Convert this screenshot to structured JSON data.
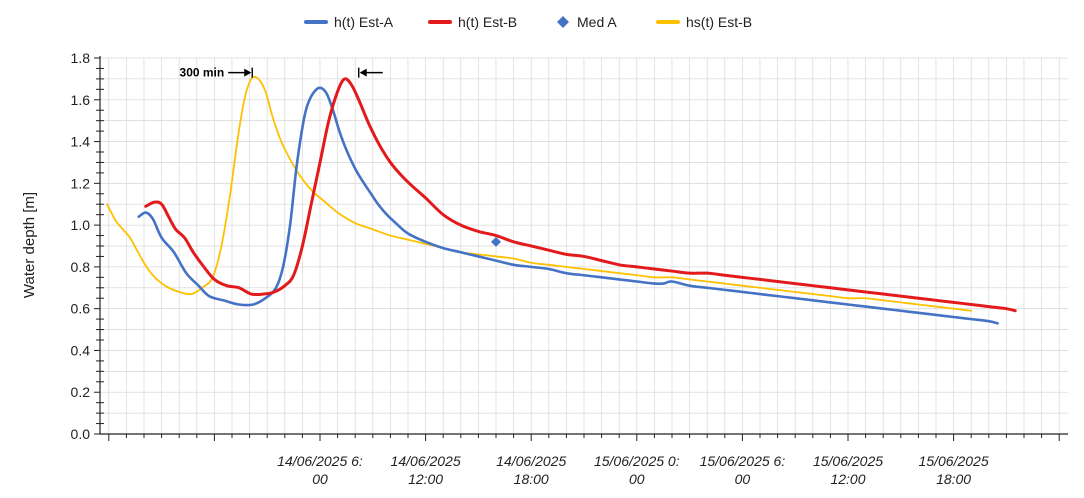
{
  "chart_data": {
    "type": "line",
    "title": "",
    "xlabel": "",
    "ylabel": "Water depth [m]",
    "ylim": [
      0,
      1.8
    ],
    "yticks": [
      "0.0",
      "0.2",
      "0.4",
      "0.6",
      "0.8",
      "1.0",
      "1.2",
      "1.4",
      "1.6",
      "1.8"
    ],
    "grid": true,
    "legend_placement": "top-center",
    "xaxis": {
      "unit": "hours",
      "range": [
        -6.5,
        48.5
      ],
      "tick_labels": [
        {
          "hours": 6,
          "line1": "14/06/2025 6:",
          "line2": "00"
        },
        {
          "hours": 12,
          "line1": "14/06/2025",
          "line2": "12:00"
        },
        {
          "hours": 18,
          "line1": "14/06/2025",
          "line2": "18:00"
        },
        {
          "hours": 24,
          "line1": "15/06/2025 0:",
          "line2": "00"
        },
        {
          "hours": 30,
          "line1": "15/06/2025 6:",
          "line2": "00"
        },
        {
          "hours": 36,
          "line1": "15/06/2025",
          "line2": "12:00"
        },
        {
          "hours": 42,
          "line1": "15/06/2025",
          "line2": "18:00"
        }
      ]
    },
    "series": [
      {
        "name": "h(t) Est-A",
        "color": "#4472C4",
        "kind": "line",
        "x": [
          -4.3,
          -3.9,
          -3.5,
          -3.0,
          -2.3,
          -1.6,
          -0.9,
          -0.3,
          0.5,
          1.4,
          2.2,
          2.9,
          3.5,
          3.9,
          4.3,
          4.7,
          5.2,
          5.8,
          6.3,
          6.7,
          7.1,
          7.5,
          8.0,
          8.5,
          8.9,
          9.3,
          9.8,
          10.3,
          11.0,
          12.0,
          13.0,
          14.0,
          15.0,
          16.0,
          17.0,
          18.0,
          19.0,
          20.0,
          21.0,
          22.0,
          23.0,
          24.0,
          25.0,
          25.5,
          26.0,
          27.0,
          28.0,
          29.0,
          30.0,
          31.0,
          32.0,
          33.0,
          34.0,
          35.0,
          36.0,
          37.0,
          38.0,
          39.0,
          40.0,
          41.0,
          42.0,
          43.0,
          44.0,
          44.5
        ],
        "y": [
          1.04,
          1.06,
          1.03,
          0.94,
          0.87,
          0.77,
          0.71,
          0.66,
          0.64,
          0.62,
          0.62,
          0.65,
          0.7,
          0.8,
          1.0,
          1.3,
          1.55,
          1.65,
          1.64,
          1.56,
          1.45,
          1.36,
          1.27,
          1.2,
          1.15,
          1.1,
          1.05,
          1.01,
          0.96,
          0.92,
          0.89,
          0.87,
          0.85,
          0.83,
          0.81,
          0.8,
          0.79,
          0.77,
          0.76,
          0.75,
          0.74,
          0.73,
          0.72,
          0.72,
          0.73,
          0.71,
          0.7,
          0.69,
          0.68,
          0.67,
          0.66,
          0.65,
          0.64,
          0.63,
          0.62,
          0.61,
          0.6,
          0.59,
          0.58,
          0.57,
          0.56,
          0.55,
          0.54,
          0.53
        ]
      },
      {
        "name": "h(t) Est-B",
        "color": "#E31A1C",
        "kind": "line",
        "x": [
          -3.9,
          -3.4,
          -3.0,
          -2.6,
          -2.2,
          -1.7,
          -1.2,
          -0.6,
          0.0,
          0.7,
          1.4,
          2.1,
          2.8,
          3.4,
          4.0,
          4.5,
          5.0,
          5.5,
          6.0,
          6.5,
          7.0,
          7.4,
          7.8,
          8.2,
          8.8,
          9.4,
          10.0,
          10.6,
          11.2,
          12.0,
          13.0,
          14.0,
          15.0,
          16.0,
          17.0,
          18.0,
          19.0,
          20.0,
          21.0,
          22.0,
          23.0,
          24.0,
          25.0,
          26.0,
          27.0,
          28.0,
          29.0,
          30.0,
          31.0,
          32.0,
          33.0,
          34.0,
          35.0,
          36.0,
          37.0,
          38.0,
          39.0,
          40.0,
          41.0,
          42.0,
          43.0,
          44.0,
          45.0,
          45.5
        ],
        "y": [
          1.09,
          1.11,
          1.1,
          1.04,
          0.98,
          0.94,
          0.87,
          0.8,
          0.74,
          0.71,
          0.7,
          0.67,
          0.67,
          0.68,
          0.71,
          0.76,
          0.9,
          1.1,
          1.3,
          1.5,
          1.64,
          1.7,
          1.67,
          1.6,
          1.48,
          1.38,
          1.3,
          1.24,
          1.19,
          1.13,
          1.05,
          1.0,
          0.97,
          0.95,
          0.92,
          0.9,
          0.88,
          0.86,
          0.85,
          0.83,
          0.81,
          0.8,
          0.79,
          0.78,
          0.77,
          0.77,
          0.76,
          0.75,
          0.74,
          0.73,
          0.72,
          0.71,
          0.7,
          0.69,
          0.68,
          0.67,
          0.66,
          0.65,
          0.64,
          0.63,
          0.62,
          0.61,
          0.6,
          0.59
        ]
      },
      {
        "name": "Med A",
        "color": "#4472C4",
        "kind": "marker",
        "x": [
          16.0
        ],
        "y": [
          0.92
        ]
      },
      {
        "name": "hs(t) Est-B",
        "color": "#FFC000",
        "kind": "line",
        "x": [
          -6.1,
          -5.6,
          -5.2,
          -4.8,
          -4.4,
          -4.0,
          -3.5,
          -2.8,
          -2.0,
          -1.3,
          -0.7,
          -0.1,
          0.4,
          0.9,
          1.3,
          1.7,
          2.1,
          2.5,
          2.9,
          3.3,
          3.8,
          4.4,
          5.0,
          5.6,
          6.3,
          7.0,
          8.0,
          9.0,
          10.0,
          11.0,
          12.0,
          13.0,
          14.0,
          15.0,
          16.0,
          17.0,
          18.0,
          19.0,
          20.0,
          21.0,
          22.0,
          23.0,
          24.0,
          25.0,
          26.0,
          27.0,
          28.0,
          29.0,
          30.0,
          31.0,
          32.0,
          33.0,
          34.0,
          35.0,
          36.0,
          37.0,
          38.0,
          39.0,
          40.0,
          41.0,
          42.0,
          43.0
        ],
        "y": [
          1.1,
          1.02,
          0.98,
          0.94,
          0.88,
          0.82,
          0.76,
          0.71,
          0.68,
          0.67,
          0.7,
          0.75,
          0.9,
          1.15,
          1.4,
          1.6,
          1.7,
          1.7,
          1.64,
          1.52,
          1.4,
          1.3,
          1.22,
          1.16,
          1.11,
          1.06,
          1.01,
          0.98,
          0.95,
          0.93,
          0.91,
          0.89,
          0.87,
          0.86,
          0.85,
          0.84,
          0.82,
          0.81,
          0.8,
          0.79,
          0.78,
          0.77,
          0.76,
          0.75,
          0.75,
          0.74,
          0.73,
          0.72,
          0.71,
          0.7,
          0.69,
          0.68,
          0.67,
          0.66,
          0.65,
          0.65,
          0.64,
          0.63,
          0.62,
          0.61,
          0.6,
          0.59
        ]
      }
    ],
    "annotations": [
      {
        "text": "300 min",
        "x_start": 2.15,
        "x_end": 8.2,
        "y": 1.73
      }
    ]
  }
}
